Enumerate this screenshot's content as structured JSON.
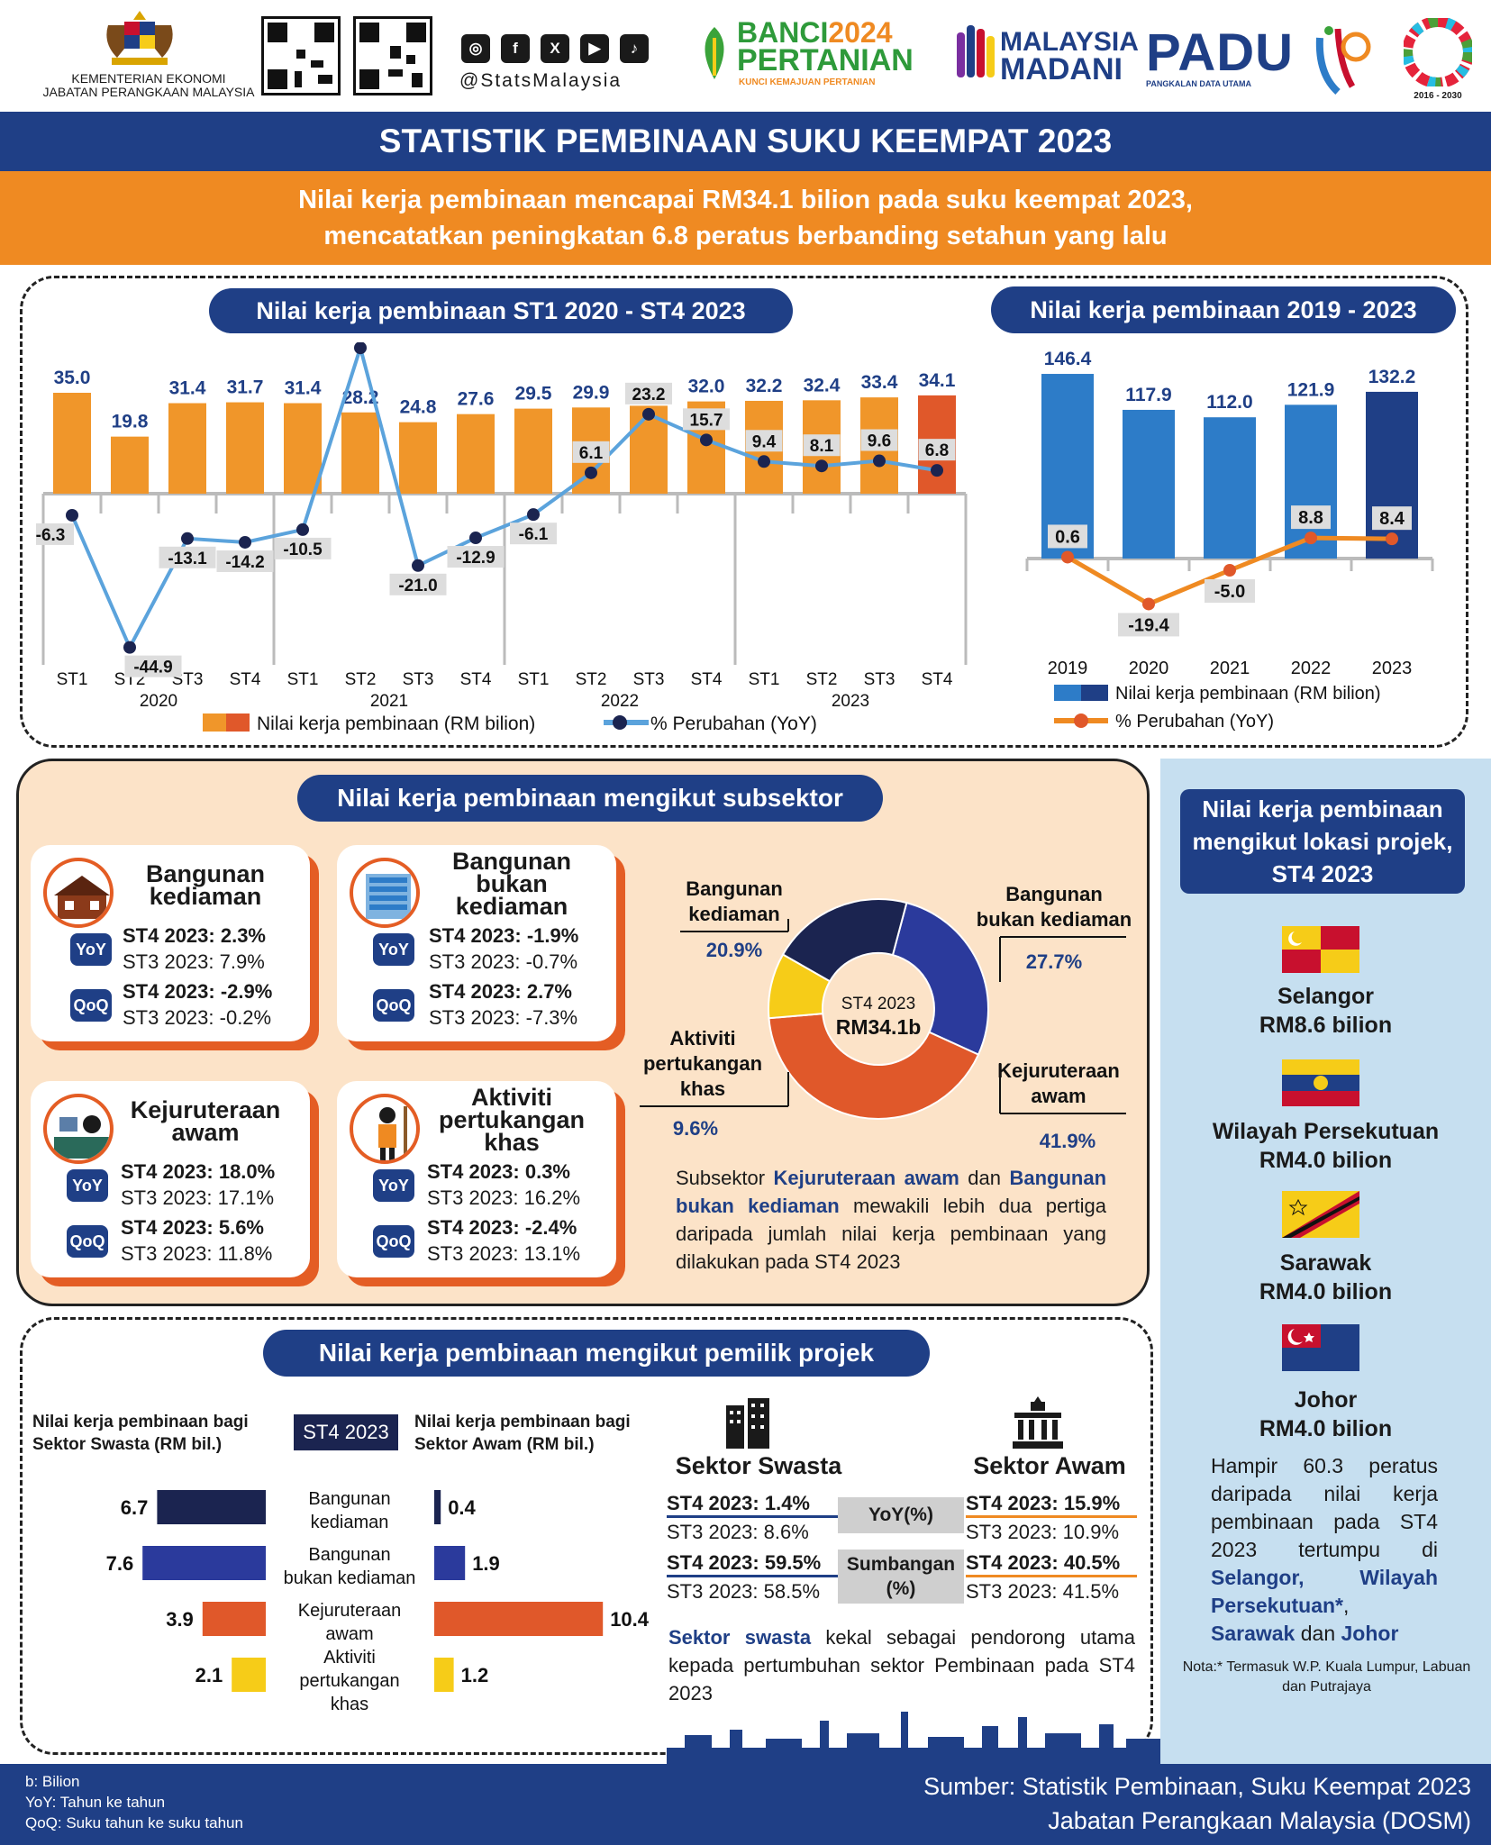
{
  "header": {
    "ministry_line1": "KEMENTERIAN EKONOMI",
    "ministry_line2": "JABATAN PERANGKAAN MALAYSIA",
    "handle": "@StatsMalaysia",
    "banci_1": "BANCI",
    "banci_year": "2024",
    "banci_2": "PERTANIAN",
    "banci_tag": "KUNCI KEMAJUAN PERTANIAN",
    "madani_1": "MALAYSIA",
    "madani_2": "MADANI",
    "padu": "PADU",
    "padu_tag": "PANGKALAN DATA UTAMA",
    "sdg_years": "2016 - 2030"
  },
  "title": "STATISTIK PEMBINAAN SUKU KEEMPAT 2023",
  "subtitle_line1": "Nilai kerja pembinaan mencapai RM34.1 bilion pada suku keempat 2023,",
  "subtitle_line2": "mencatatkan peningkatan 6.8 peratus berbanding setahun yang lalu",
  "chart_data": [
    {
      "type": "bar",
      "title": "Nilai kerja pembinaan ST1 2020 - ST4 2023",
      "categories": [
        "ST1",
        "ST2",
        "ST3",
        "ST4",
        "ST1",
        "ST2",
        "ST3",
        "ST4",
        "ST1",
        "ST2",
        "ST3",
        "ST4",
        "ST1",
        "ST2",
        "ST3",
        "ST4"
      ],
      "years": [
        "2020",
        "2021",
        "2022",
        "2023"
      ],
      "series": [
        {
          "name": "Nilai kerja pembinaan (RM bilion)",
          "type": "bar",
          "values": [
            35.0,
            19.8,
            31.4,
            31.7,
            31.4,
            28.2,
            24.8,
            27.6,
            29.5,
            29.9,
            30.5,
            32.0,
            32.2,
            32.4,
            33.4,
            34.1
          ]
        },
        {
          "name": "% Perubahan (YoY)",
          "type": "line",
          "values": [
            -6.3,
            -44.9,
            -13.1,
            -14.2,
            -10.5,
            42.6,
            -21.0,
            -12.9,
            -6.1,
            6.1,
            23.2,
            15.7,
            9.4,
            8.1,
            9.6,
            6.8
          ]
        }
      ],
      "colors": {
        "bar": "#f0962a",
        "bar_highlight": "#e0582a",
        "line": "#5ba3dc",
        "marker": "#1b2450"
      }
    },
    {
      "type": "bar",
      "title": "Nilai kerja pembinaan 2019 - 2023",
      "categories": [
        "2019",
        "2020",
        "2021",
        "2022",
        "2023"
      ],
      "series": [
        {
          "name": "Nilai kerja pembinaan (RM bilion)",
          "type": "bar",
          "values": [
            146.4,
            117.9,
            112.0,
            121.9,
            132.2
          ]
        },
        {
          "name": "% Perubahan (YoY)",
          "type": "line",
          "values": [
            0.6,
            -19.4,
            -5.0,
            8.8,
            8.4
          ]
        }
      ],
      "colors": {
        "bar": "#2d7cc8",
        "bar_highlight": "#1f3f86",
        "line": "#ef8a22",
        "marker": "#e0582a"
      }
    },
    {
      "type": "pie",
      "title": "",
      "center_line1": "ST4 2023",
      "center_line2": "RM34.1b",
      "categories": [
        "Bangunan bukan kediaman",
        "Kejuruteraan awam",
        "Aktiviti pertukangan khas",
        "Bangunan kediaman"
      ],
      "values": [
        27.7,
        41.9,
        9.6,
        20.9
      ],
      "colors": [
        "#2b3a9c",
        "#e0582a",
        "#f6cc18",
        "#1b2450"
      ]
    },
    {
      "type": "bar",
      "title": "Nilai kerja pembinaan bagi Sektor Swasta (RM bil.)",
      "categories": [
        "Bangunan kediaman",
        "Bangunan bukan kediaman",
        "Kejuruteraan awam",
        "Aktiviti pertukangan khas"
      ],
      "values": [
        6.7,
        7.6,
        3.9,
        2.1
      ]
    },
    {
      "type": "bar",
      "title": "Nilai kerja pembinaan bagi Sektor Awam (RM bil.)",
      "categories": [
        "Bangunan kediaman",
        "Bangunan bukan kediaman",
        "Kejuruteraan awam",
        "Aktiviti pertukangan khas"
      ],
      "values": [
        0.4,
        1.9,
        10.4,
        1.2
      ]
    }
  ],
  "quarterly_legend": {
    "bar": "Nilai kerja pembinaan (RM bilion)",
    "line": "% Perubahan (YoY)"
  },
  "annual_legend": {
    "bar": "Nilai kerja pembinaan (RM bilion)",
    "line": "% Perubahan (YoY)"
  },
  "pie_labels": [
    {
      "name": "Bangunan kediaman",
      "pct": "20.9%"
    },
    {
      "name": "Bangunan bukan kediaman",
      "pct": "27.7%"
    },
    {
      "name": "Aktiviti pertukangan khas",
      "pct": "9.6%"
    },
    {
      "name": "Kejuruteraan awam",
      "pct": "41.9%"
    }
  ],
  "subsector": {
    "title": "Nilai kerja pembinaan mengikut subsektor",
    "yoy": "YoY",
    "qoq": "QoQ",
    "cards": [
      {
        "title": "Bangunan kediaman",
        "yoy_cur": "ST4 2023: 2.3%",
        "yoy_prev": "ST3 2023: 7.9%",
        "qoq_cur": "ST4 2023: -2.9%",
        "qoq_prev": "ST3 2023: -0.2%"
      },
      {
        "title": "Bangunan bukan kediaman",
        "yoy_cur": "ST4 2023: -1.9%",
        "yoy_prev": "ST3 2023: -0.7%",
        "qoq_cur": "ST4 2023: 2.7%",
        "qoq_prev": "ST3 2023: -7.3%"
      },
      {
        "title": "Kejuruteraan awam",
        "yoy_cur": "ST4 2023: 18.0%",
        "yoy_prev": "ST3 2023: 17.1%",
        "qoq_cur": "ST4 2023: 5.6%",
        "qoq_prev": "ST3 2023: 11.8%"
      },
      {
        "title": "Aktiviti pertukangan khas",
        "yoy_cur": "ST4 2023: 0.3%",
        "yoy_prev": "ST3 2023: 16.2%",
        "qoq_cur": "ST4 2023: -2.4%",
        "qoq_prev": "ST3 2023: 13.1%"
      }
    ],
    "note_a": "Subsektor ",
    "note_b": "Kejuruteraan awam",
    "note_c": " dan ",
    "note_d": "Bangunan bukan kediaman",
    "note_e": " mewakili lebih dua pertiga daripada jumlah nilai kerja pembinaan yang dilakukan pada ST4 2023"
  },
  "owner": {
    "title": "Nilai kerja pembinaan mengikut pemilik projek",
    "private_header": "Nilai kerja pembinaan bagi Sektor Swasta (RM bil.)",
    "public_header": "Nilai kerja pembinaan bagi Sektor Awam (RM bil.)",
    "period_badge": "ST4 2023",
    "private_label": "Sektor Swasta",
    "public_label": "Sektor Awam",
    "yoy_label": "YoY(%)",
    "share_label_1": "Sumbangan",
    "share_label_2": "(%)",
    "private_yoy_cur": "ST4 2023: 1.4%",
    "private_yoy_prev": "ST3 2023: 8.6%",
    "private_share_cur": "ST4 2023: 59.5%",
    "private_share_prev": "ST3 2023: 58.5%",
    "public_yoy_cur": "ST4 2023: 15.9%",
    "public_yoy_prev": "ST3 2023: 10.9%",
    "public_share_cur": "ST4 2023: 40.5%",
    "public_share_prev": "ST3 2023: 41.5%",
    "note_a": "Sektor swasta",
    "note_b": " kekal sebagai pendorong utama kepada pertumbuhan sektor Pembinaan pada ST4 2023"
  },
  "location": {
    "title": "Nilai kerja pembinaan mengikut lokasi projek, ST4 2023",
    "items": [
      {
        "state": "Selangor",
        "value": "RM8.6 bilion"
      },
      {
        "state": "Wilayah Persekutuan",
        "value": "RM4.0 bilion"
      },
      {
        "state": "Sarawak",
        "value": "RM4.0 bilion"
      },
      {
        "state": "Johor",
        "value": "RM4.0 bilion"
      }
    ],
    "note_a": "Hampir 60.3 peratus daripada nilai kerja pembinaan pada ST4 2023 tertumpu di ",
    "note_b": "Selangor, Wilayah Persekutuan*",
    "note_c": ", ",
    "note_d": "Sarawak",
    "note_e": " dan ",
    "note_f": "Johor",
    "footnote": "Nota:* Termasuk W.P. Kuala Lumpur, Labuan dan Putrajaya"
  },
  "footer": {
    "abbr_b": "b: Bilion",
    "abbr_yoy": "YoY: Tahun ke tahun",
    "abbr_qoq": "QoQ: Suku tahun ke suku tahun",
    "source_1": "Sumber: Statistik Pembinaan, Suku Keempat 2023",
    "source_2": "Jabatan Perangkaan Malaysia (DOSM)"
  }
}
